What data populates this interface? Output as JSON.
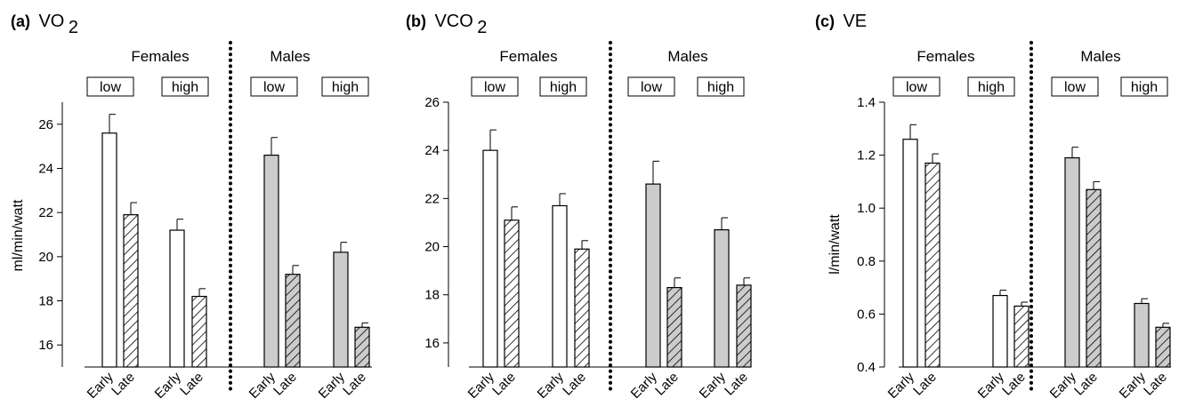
{
  "chart_data": [
    {
      "type": "bar",
      "panel_letter": "(a)",
      "title_base": "VO",
      "title_sub": "2",
      "ylabel": "ml/min/watt",
      "ylim": [
        15,
        27
      ],
      "yticks": [
        16,
        18,
        20,
        22,
        24,
        26
      ],
      "groups": [
        "Females",
        "Males"
      ],
      "subgroups": [
        "low",
        "high"
      ],
      "categories": [
        "Early",
        "Late"
      ],
      "bars": [
        {
          "group": "Females",
          "subgroup": "low",
          "category": "Early",
          "value": 25.6,
          "error": 0.85
        },
        {
          "group": "Females",
          "subgroup": "low",
          "category": "Late",
          "value": 21.9,
          "error": 0.55
        },
        {
          "group": "Females",
          "subgroup": "high",
          "category": "Early",
          "value": 21.2,
          "error": 0.5
        },
        {
          "group": "Females",
          "subgroup": "high",
          "category": "Late",
          "value": 18.2,
          "error": 0.35
        },
        {
          "group": "Males",
          "subgroup": "low",
          "category": "Early",
          "value": 24.6,
          "error": 0.8
        },
        {
          "group": "Males",
          "subgroup": "low",
          "category": "Late",
          "value": 19.2,
          "error": 0.4
        },
        {
          "group": "Males",
          "subgroup": "high",
          "category": "Early",
          "value": 20.2,
          "error": 0.45
        },
        {
          "group": "Males",
          "subgroup": "high",
          "category": "Late",
          "value": 16.8,
          "error": 0.2
        }
      ]
    },
    {
      "type": "bar",
      "panel_letter": "(b)",
      "title_base": "VCO",
      "title_sub": "2",
      "ylabel": "",
      "ylim": [
        15,
        26
      ],
      "yticks": [
        16,
        18,
        20,
        22,
        24,
        26
      ],
      "groups": [
        "Females",
        "Males"
      ],
      "subgroups": [
        "low",
        "high"
      ],
      "categories": [
        "Early",
        "Late"
      ],
      "bars": [
        {
          "group": "Females",
          "subgroup": "low",
          "category": "Early",
          "value": 24.0,
          "error": 0.85
        },
        {
          "group": "Females",
          "subgroup": "low",
          "category": "Late",
          "value": 21.1,
          "error": 0.55
        },
        {
          "group": "Females",
          "subgroup": "high",
          "category": "Early",
          "value": 21.7,
          "error": 0.5
        },
        {
          "group": "Females",
          "subgroup": "high",
          "category": "Late",
          "value": 19.9,
          "error": 0.35
        },
        {
          "group": "Males",
          "subgroup": "low",
          "category": "Early",
          "value": 22.6,
          "error": 0.95
        },
        {
          "group": "Males",
          "subgroup": "low",
          "category": "Late",
          "value": 18.3,
          "error": 0.4
        },
        {
          "group": "Males",
          "subgroup": "high",
          "category": "Early",
          "value": 20.7,
          "error": 0.5
        },
        {
          "group": "Males",
          "subgroup": "high",
          "category": "Late",
          "value": 18.4,
          "error": 0.3
        }
      ]
    },
    {
      "type": "bar",
      "panel_letter": "(c)",
      "title_base": "VE",
      "title_sub": "",
      "ylabel": "l/min/watt",
      "ylim": [
        0.4,
        1.4
      ],
      "yticks": [
        "0.4",
        "0.6",
        "0.8",
        "1.0",
        "1.2",
        "1.4"
      ],
      "groups": [
        "Females",
        "Males"
      ],
      "subgroups": [
        "low",
        "high"
      ],
      "categories": [
        "Early",
        "Late"
      ],
      "bars": [
        {
          "group": "Females",
          "subgroup": "low",
          "category": "Early",
          "value": 1.26,
          "error": 0.055
        },
        {
          "group": "Females",
          "subgroup": "low",
          "category": "Late",
          "value": 1.17,
          "error": 0.035
        },
        {
          "group": "Females",
          "subgroup": "high",
          "category": "Early",
          "value": 0.67,
          "error": 0.02
        },
        {
          "group": "Females",
          "subgroup": "high",
          "category": "Late",
          "value": 0.63,
          "error": 0.015
        },
        {
          "group": "Males",
          "subgroup": "low",
          "category": "Early",
          "value": 1.19,
          "error": 0.04
        },
        {
          "group": "Males",
          "subgroup": "low",
          "category": "Late",
          "value": 1.07,
          "error": 0.03
        },
        {
          "group": "Males",
          "subgroup": "high",
          "category": "Early",
          "value": 0.64,
          "error": 0.018
        },
        {
          "group": "Males",
          "subgroup": "high",
          "category": "Late",
          "value": 0.55,
          "error": 0.015
        }
      ]
    }
  ],
  "colors": {
    "females_fill": "#ffffff",
    "males_fill": "#cccccc",
    "stroke": "#000000"
  }
}
